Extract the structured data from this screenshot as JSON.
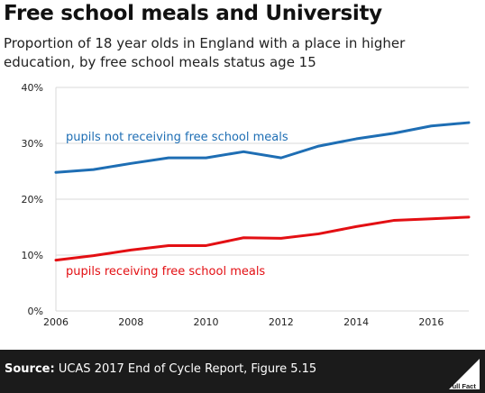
{
  "header": {
    "title": "Free school meals and University",
    "subtitle": "Proportion of 18 year olds in England with a place in higher education, by free school meals status age 15"
  },
  "footer": {
    "source_label": "Source:",
    "source_text": " UCAS 2017 End of Cycle Report, Figure 5.15",
    "logo_text": "Full Fact"
  },
  "chart_data": {
    "type": "line",
    "x": [
      2006,
      2007,
      2008,
      2009,
      2010,
      2011,
      2012,
      2013,
      2014,
      2015,
      2016,
      2017
    ],
    "xticks": [
      "2006",
      "2008",
      "2010",
      "2012",
      "2014",
      "2016"
    ],
    "yticks": [
      "0%",
      "10%",
      "20%",
      "30%",
      "40%"
    ],
    "ylim": [
      0,
      40
    ],
    "xlim": [
      2006,
      2017
    ],
    "series": [
      {
        "name": "pupils not receiving free school meals",
        "color": "#1e6eb4",
        "values": [
          24.8,
          25.3,
          26.4,
          27.4,
          27.4,
          28.5,
          27.4,
          29.5,
          30.8,
          31.8,
          33.1,
          33.7
        ]
      },
      {
        "name": "pupils receiving free school meals",
        "color": "#e30f13",
        "values": [
          9.1,
          9.9,
          10.9,
          11.7,
          11.7,
          13.1,
          13.0,
          13.8,
          15.1,
          16.2,
          16.5,
          16.8
        ]
      }
    ]
  }
}
